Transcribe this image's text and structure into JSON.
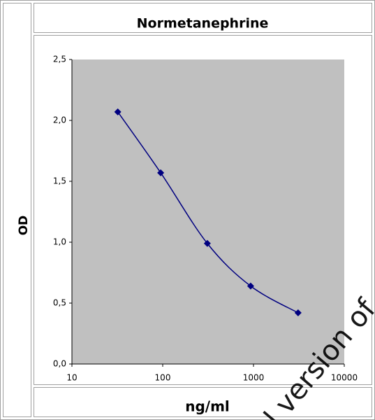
{
  "chart_data": {
    "type": "line",
    "title": "Normetanephrine",
    "xlabel": "ng/ml",
    "ylabel": "OD",
    "x": [
      32,
      95,
      310,
      930,
      3100
    ],
    "series": [
      {
        "name": "Normetanephrine",
        "color": "#000080",
        "values": [
          2.07,
          1.57,
          0.99,
          0.64,
          0.42
        ]
      }
    ],
    "xscale": "log",
    "xlim": [
      10,
      10000
    ],
    "xticks": [
      10,
      100,
      1000,
      10000
    ],
    "ylim": [
      0,
      2.5
    ],
    "yticks": [
      {
        "value": 0,
        "label": "0,0"
      },
      {
        "value": 0.5,
        "label": "0,5"
      },
      {
        "value": 1,
        "label": "1,0"
      },
      {
        "value": 1.5,
        "label": "1,5"
      },
      {
        "value": 2,
        "label": "2,0"
      },
      {
        "value": 2.5,
        "label": "2,5"
      }
    ],
    "plot_background": "#c0c0c0",
    "watermark": "l version of"
  }
}
